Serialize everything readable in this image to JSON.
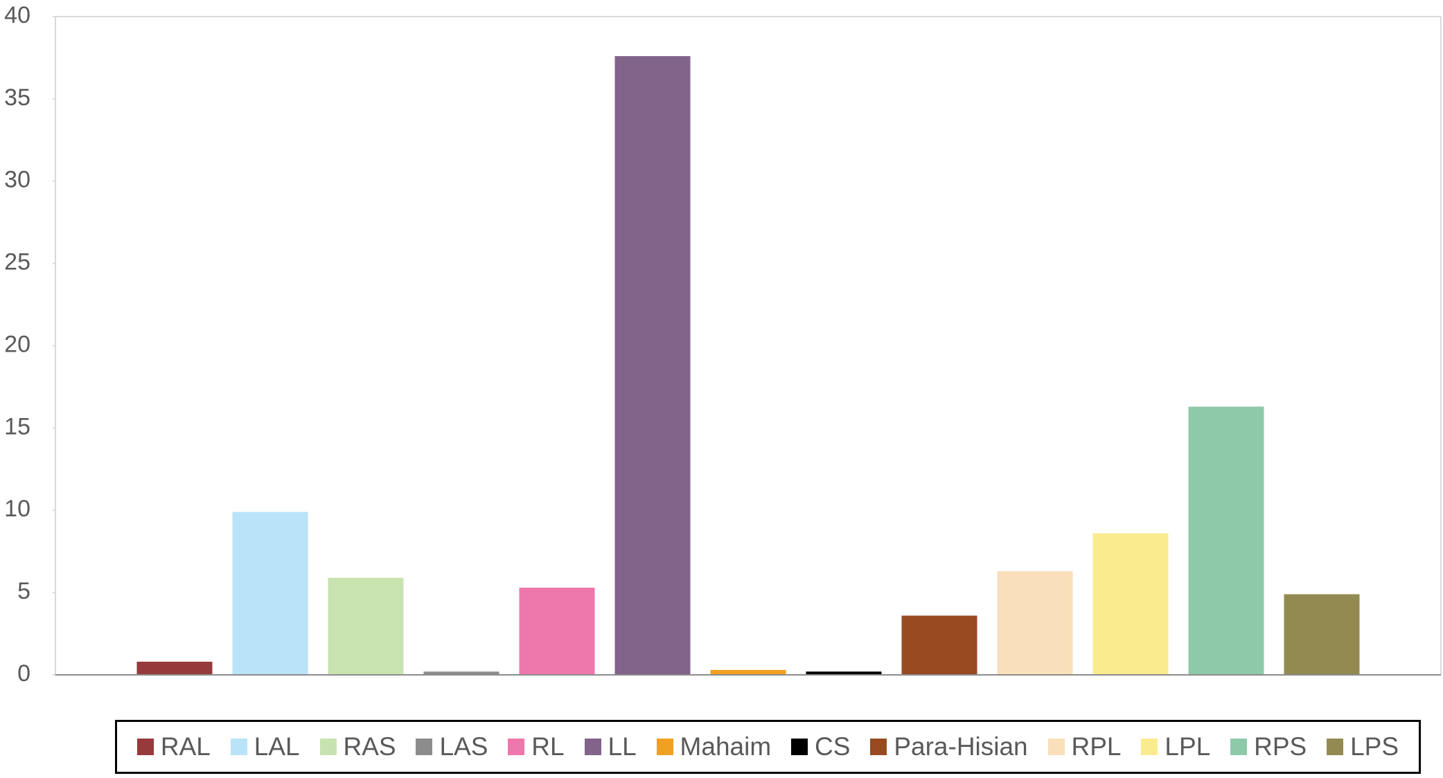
{
  "chart_data": {
    "type": "bar",
    "series": [
      {
        "name": "RAL",
        "color": "#973a3b",
        "values": [
          0.8
        ]
      },
      {
        "name": "LAL",
        "color": "#b9e3f8",
        "values": [
          9.9
        ]
      },
      {
        "name": "RAS",
        "color": "#c8e3b0",
        "values": [
          5.9
        ]
      },
      {
        "name": "LAS",
        "color": "#8c8c8c",
        "values": [
          0.2
        ]
      },
      {
        "name": "RL",
        "color": "#ee77ab",
        "values": [
          5.3
        ]
      },
      {
        "name": "LL",
        "color": "#82638a",
        "values": [
          37.6
        ]
      },
      {
        "name": "Mahaim",
        "color": "#f0a022",
        "values": [
          0.3
        ]
      },
      {
        "name": "CS",
        "color": "#000000",
        "values": [
          0.2
        ]
      },
      {
        "name": "Para-Hisian",
        "color": "#994a21",
        "values": [
          3.6
        ]
      },
      {
        "name": "RPL",
        "color": "#f9dfba",
        "values": [
          6.3
        ]
      },
      {
        "name": "LPL",
        "color": "#faeb8e",
        "values": [
          8.6
        ]
      },
      {
        "name": "RPS",
        "color": "#8ecaaa",
        "values": [
          16.3
        ]
      },
      {
        "name": "LPS",
        "color": "#938a52",
        "values": [
          4.9
        ]
      }
    ],
    "ylim": [
      0,
      40
    ],
    "yticks": [
      0,
      5,
      10,
      15,
      20,
      25,
      30,
      35,
      40
    ],
    "legend": "bottom"
  }
}
